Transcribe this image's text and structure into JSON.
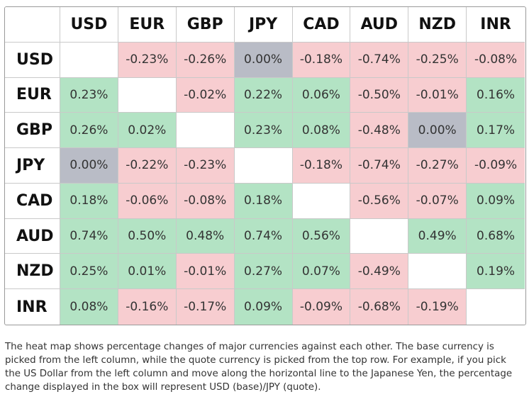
{
  "chart_data": {
    "type": "heatmap",
    "columns": [
      "USD",
      "EUR",
      "GBP",
      "JPY",
      "CAD",
      "AUD",
      "NZD",
      "INR"
    ],
    "rows": [
      "USD",
      "EUR",
      "GBP",
      "JPY",
      "CAD",
      "AUD",
      "NZD",
      "INR"
    ],
    "unit": "%",
    "values": [
      [
        null,
        -0.23,
        -0.26,
        0.0,
        -0.18,
        -0.74,
        -0.25,
        -0.08
      ],
      [
        0.23,
        null,
        -0.02,
        0.22,
        0.06,
        -0.5,
        -0.01,
        0.16
      ],
      [
        0.26,
        0.02,
        null,
        0.23,
        0.08,
        -0.48,
        0.0,
        0.17
      ],
      [
        0.0,
        -0.22,
        -0.23,
        null,
        -0.18,
        -0.74,
        -0.27,
        -0.09
      ],
      [
        0.18,
        -0.06,
        -0.08,
        0.18,
        null,
        -0.56,
        -0.07,
        0.09
      ],
      [
        0.74,
        0.5,
        0.48,
        0.74,
        0.56,
        null,
        0.49,
        0.68
      ],
      [
        0.25,
        0.01,
        -0.01,
        0.27,
        0.07,
        -0.49,
        null,
        0.19
      ],
      [
        0.08,
        -0.16,
        -0.17,
        0.09,
        -0.09,
        -0.68,
        -0.19,
        null
      ]
    ],
    "colors": {
      "positive": "#b3e3c4",
      "negative": "#f7cdd0",
      "zero": "#b9bcc6",
      "empty": "#ffffff"
    }
  },
  "caption": "The heat map shows percentage changes of major currencies against each other. The base currency is picked from the left column, while the quote currency is picked from the top row. For example, if you pick the US Dollar from the left column and move along the horizontal line to the Japanese Yen, the percentage change displayed in the box will represent USD (base)/JPY (quote)."
}
